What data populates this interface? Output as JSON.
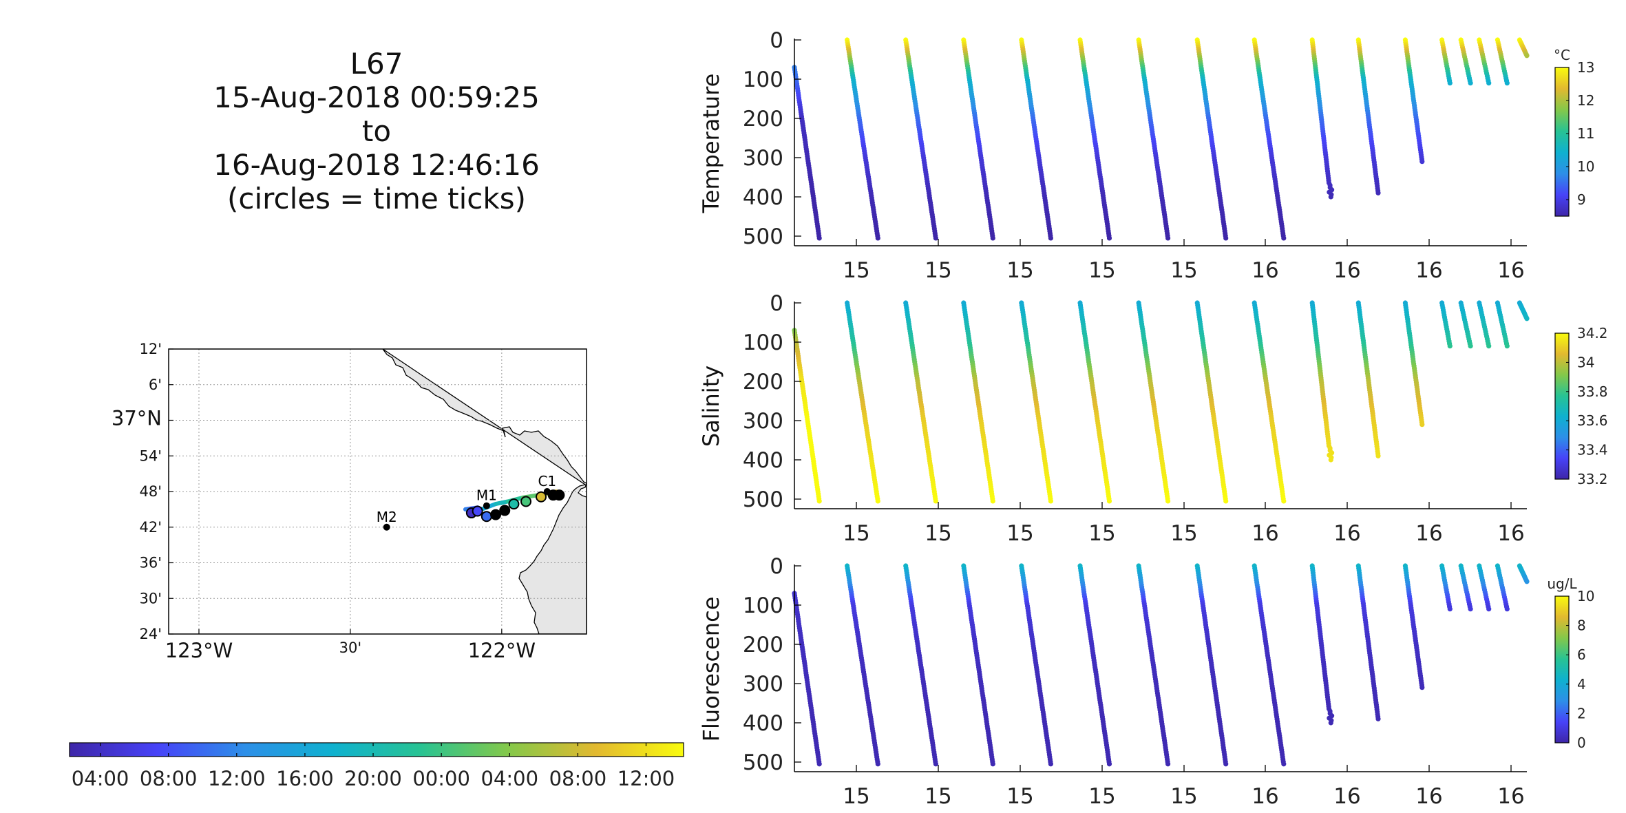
{
  "title": {
    "lines": [
      "L67",
      "15-Aug-2018 00:59:25",
      "to",
      "16-Aug-2018 12:46:16",
      "(circles = time ticks)"
    ]
  },
  "colors": {
    "parula": [
      "#3e26a8",
      "#4743f8",
      "#2d8fe8",
      "#0fb1cf",
      "#28c393",
      "#84c84a",
      "#e2b930",
      "#f9fb0e"
    ],
    "land": "#e6e6e6",
    "coast": "#000000",
    "grid": "#9a9a9a"
  },
  "map": {
    "lat_range": [
      36.4,
      37.2
    ],
    "lon_range": [
      -123.05,
      -121.67
    ],
    "lat_ticks": [
      {
        "lat": 37.2,
        "label": "12'"
      },
      {
        "lat": 37.1,
        "label": "6'"
      },
      {
        "lat": 37.0,
        "label": "37°N",
        "major": true
      },
      {
        "lat": 36.9,
        "label": "54'"
      },
      {
        "lat": 36.8,
        "label": "48'"
      },
      {
        "lat": 36.7,
        "label": "42'"
      },
      {
        "lat": 36.6,
        "label": "36'"
      },
      {
        "lat": 36.5,
        "label": "30'"
      },
      {
        "lat": 36.4,
        "label": "24'"
      }
    ],
    "lon_ticks": [
      {
        "lon": -122.95,
        "label": "123°W",
        "major": true
      },
      {
        "lon": -122.45,
        "label": "30'"
      },
      {
        "lon": -121.95,
        "label": "122°W",
        "major": true
      }
    ],
    "stations": [
      {
        "name": "M2",
        "lon": -122.33,
        "lat": 36.7
      },
      {
        "name": "M1",
        "lon": -122.0,
        "lat": 36.76
      },
      {
        "name": "C1",
        "lon": -121.8,
        "lat": 36.8
      }
    ],
    "track": [
      {
        "lon": -122.05,
        "lat": 36.74,
        "c": 0.05
      },
      {
        "lon": -122.06,
        "lat": 36.745,
        "c": 0.12
      },
      {
        "lon": -122.03,
        "lat": 36.755,
        "c": 0.2
      },
      {
        "lon": -122.07,
        "lat": 36.75,
        "c": 0.26
      },
      {
        "lon": -122.04,
        "lat": 36.748,
        "c": 0.33
      },
      {
        "lon": -122.01,
        "lat": 36.752,
        "c": 0.4
      },
      {
        "lon": -121.97,
        "lat": 36.765,
        "c": 0.48
      },
      {
        "lon": -121.93,
        "lat": 36.772,
        "c": 0.56
      },
      {
        "lon": -121.88,
        "lat": 36.783,
        "c": 0.65
      },
      {
        "lon": -121.83,
        "lat": 36.79,
        "c": 0.76
      },
      {
        "lon": -121.79,
        "lat": 36.795,
        "c": 0.86
      },
      {
        "lon": -121.77,
        "lat": 36.8,
        "c": 0.96
      }
    ],
    "time_circles": [
      {
        "lon": -122.05,
        "lat": 36.74,
        "c": 0.05
      },
      {
        "lon": -122.03,
        "lat": 36.745,
        "c": 0.15
      },
      {
        "lon": -122.0,
        "lat": 36.73,
        "c": 0.22
      },
      {
        "lon": -121.97,
        "lat": 36.735,
        "c": 0.0
      },
      {
        "lon": -121.94,
        "lat": 36.747,
        "c": 0.0
      },
      {
        "lon": -121.91,
        "lat": 36.765,
        "c": 0.52
      },
      {
        "lon": -121.87,
        "lat": 36.772,
        "c": 0.62
      },
      {
        "lon": -121.82,
        "lat": 36.785,
        "c": 0.84
      },
      {
        "lon": -121.78,
        "lat": 36.79,
        "c": 0.0
      },
      {
        "lon": -121.76,
        "lat": 36.79,
        "c": 0.0
      }
    ]
  },
  "time_colorbar": {
    "labels": [
      "04:00",
      "08:00",
      "12:00",
      "16:00",
      "20:00",
      "00:00",
      "04:00",
      "08:00",
      "12:00"
    ]
  },
  "chart_data": {
    "type": "scatter",
    "x_tick_labels": [
      "15",
      "15",
      "15",
      "15",
      "15",
      "16",
      "16",
      "16",
      "16"
    ],
    "y_tick_labels": [
      "0",
      "100",
      "200",
      "300",
      "400",
      "500"
    ],
    "ylim": [
      0,
      500
    ],
    "y_reversed": true,
    "profiles": [
      {
        "x0": 0.0,
        "x1": 0.034,
        "top": 70,
        "bottom": 505
      },
      {
        "x0": 0.072,
        "x1": 0.114,
        "top": 0,
        "bottom": 505
      },
      {
        "x0": 0.152,
        "x1": 0.193,
        "top": 0,
        "bottom": 505
      },
      {
        "x0": 0.231,
        "x1": 0.271,
        "top": 0,
        "bottom": 505
      },
      {
        "x0": 0.31,
        "x1": 0.35,
        "top": 0,
        "bottom": 505
      },
      {
        "x0": 0.39,
        "x1": 0.43,
        "top": 0,
        "bottom": 505
      },
      {
        "x0": 0.47,
        "x1": 0.51,
        "top": 0,
        "bottom": 505
      },
      {
        "x0": 0.55,
        "x1": 0.589,
        "top": 0,
        "bottom": 505
      },
      {
        "x0": 0.628,
        "x1": 0.668,
        "top": 0,
        "bottom": 505
      },
      {
        "x0": 0.707,
        "x1": 0.732,
        "top": 0,
        "bottom": 400
      },
      {
        "x0": 0.77,
        "x1": 0.797,
        "top": 0,
        "bottom": 390
      },
      {
        "x0": 0.834,
        "x1": 0.857,
        "top": 0,
        "bottom": 310
      },
      {
        "x0": 0.884,
        "x1": 0.895,
        "top": 0,
        "bottom": 110
      },
      {
        "x0": 0.91,
        "x1": 0.923,
        "top": 0,
        "bottom": 110
      },
      {
        "x0": 0.935,
        "x1": 0.948,
        "top": 0,
        "bottom": 110
      },
      {
        "x0": 0.96,
        "x1": 0.973,
        "top": 0,
        "bottom": 110
      },
      {
        "x0": 0.99,
        "x1": 1.0,
        "top": 0,
        "bottom": 40
      }
    ],
    "panels": [
      {
        "ylabel": "Temperature",
        "colorbar_unit": "°C",
        "colorbar_range": [
          8.5,
          13
        ],
        "colorbar_ticks": [
          "9",
          "10",
          "11",
          "12",
          "13"
        ],
        "colorbar_tick_values": [
          9,
          10,
          11,
          12,
          13
        ],
        "profile_values": [
          [
            10,
            9.5,
            8.7,
            8.6,
            8.5,
            8.5
          ],
          [
            13,
            10.5,
            9.5,
            8.9,
            8.6,
            8.5
          ]
        ]
      },
      {
        "ylabel": "Salinity",
        "colorbar_unit": "",
        "colorbar_range": [
          33.2,
          34.2
        ],
        "colorbar_ticks": [
          "34.2",
          "34",
          "33.8",
          "33.6",
          "33.4",
          "33.2"
        ],
        "colorbar_tick_values": [
          34.2,
          34.0,
          33.8,
          33.6,
          33.4,
          33.2
        ],
        "profile_values": [
          [
            33.7,
            34.0,
            34.15,
            34.2,
            34.2,
            34.2
          ],
          [
            33.6,
            33.75,
            34.0,
            34.1,
            34.15,
            34.2
          ]
        ]
      },
      {
        "ylabel": "Fluorescence",
        "colorbar_unit": "ug/L",
        "colorbar_range": [
          0,
          10
        ],
        "colorbar_ticks": [
          "10",
          "8",
          "6",
          "4",
          "2",
          "0"
        ],
        "colorbar_tick_values": [
          10,
          8,
          6,
          4,
          2,
          0
        ],
        "profile_values": [
          [
            1,
            0.6,
            0.4,
            0.3,
            0.2,
            0.2
          ],
          [
            4.5,
            1.0,
            0.5,
            0.3,
            0.2,
            0.2
          ]
        ]
      }
    ]
  }
}
